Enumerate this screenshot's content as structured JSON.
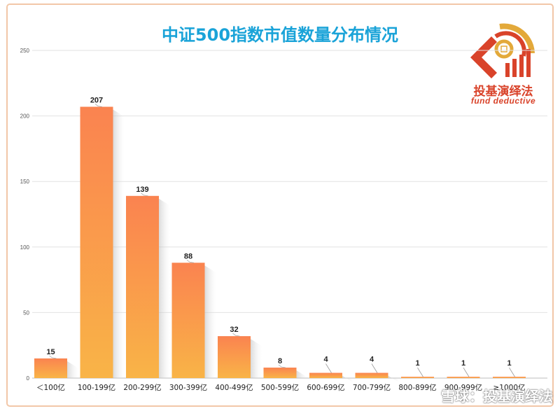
{
  "chart_data": {
    "type": "bar",
    "title": "中证500指数市值数量分布情况",
    "categories": [
      "＜100亿",
      "100-199亿",
      "200-299亿",
      "300-399亿",
      "400-499亿",
      "500-599亿",
      "600-699亿",
      "700-799亿",
      "800-899亿",
      "900-999亿",
      "≥1000亿"
    ],
    "values": [
      15,
      207,
      139,
      88,
      32,
      8,
      4,
      4,
      1,
      1,
      1
    ],
    "ylim": [
      0,
      250
    ],
    "yticks": [
      0,
      50,
      100,
      150,
      200,
      250
    ],
    "xlabel": "",
    "ylabel": "",
    "grid": true,
    "data_labels": true,
    "bar_color_top": "#fa8350",
    "bar_color_bottom": "#f9b447"
  },
  "logo": {
    "name_cn": "投基演绎法",
    "name_en": "fund deductive",
    "color": "#d9432a",
    "accent_color": "#e3a93a"
  },
  "watermark": {
    "text": "雪球：投基演绎法"
  },
  "colors": {
    "title": "#1aa3d8",
    "frame": "#f2c7a8",
    "grid": "#e2e2e2"
  }
}
